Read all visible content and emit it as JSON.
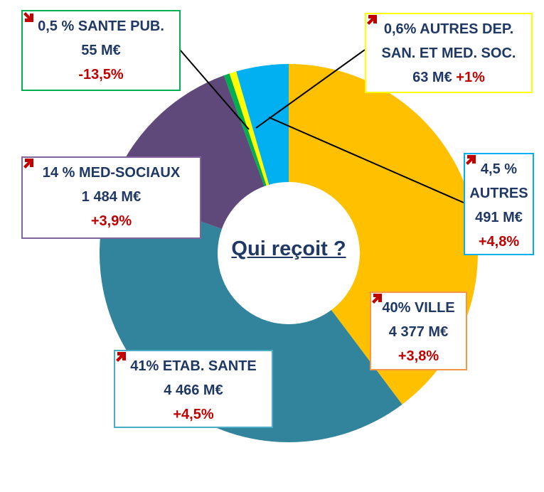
{
  "chart_data": {
    "type": "donut",
    "title": "Qui reçoit ?",
    "categories": [
      "VILLE",
      "ETAB. SANTE",
      "MED-SOCIAUX",
      "SANTE PUB.",
      "AUTRES DEP. SAN. ET MED. SOC.",
      "AUTRES"
    ],
    "values": [
      40,
      41,
      14,
      0.5,
      0.6,
      4.5
    ],
    "value_labels": [
      "40%",
      "41%",
      "14 %",
      "0,5 %",
      "0,6%",
      "4,5 %"
    ],
    "amounts": [
      "4 377 M€",
      "4 466 M€",
      "1 484 M€",
      "55  M€",
      "63 M€",
      "491 M€"
    ],
    "changes": [
      "+3,8%",
      "+4,5%",
      "+3,9%",
      "-13,5%",
      "+1%",
      "+4,8%"
    ],
    "colors": [
      "#ffc000",
      "#31849b",
      "#5f497a",
      "#00b050",
      "#ffff00",
      "#00b0f0"
    ],
    "label_borders": [
      "#f79646",
      "#4bacc6",
      "#8064a2",
      "#00b050",
      "#ffff00",
      "#00b0f0"
    ]
  }
}
